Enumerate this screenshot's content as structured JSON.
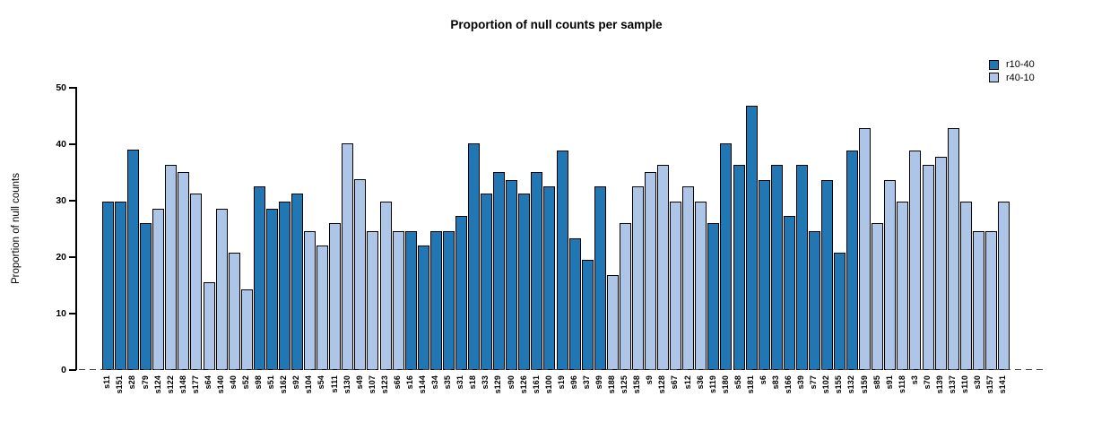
{
  "title": "Proportion of null counts per sample",
  "legend": {
    "items": [
      {
        "label": "r10-40",
        "series": "r10-40"
      },
      {
        "label": "r40-10",
        "series": "r40-10"
      }
    ]
  },
  "colors": {
    "r10-40": "#2176b4",
    "r40-10": "#adc6e8",
    "bar_border": "#000000",
    "zero_line": "#3f3f3f"
  },
  "chart_data": {
    "type": "bar",
    "title": "Proportion of null counts per sample",
    "xlabel": "",
    "ylabel": "Proportion of null counts",
    "ylim": [
      0,
      50
    ],
    "yticks": [
      0,
      10,
      20,
      30,
      40,
      50
    ],
    "grid": false,
    "legend_position": "top-right",
    "zero_line_style": "dashed",
    "series": [
      {
        "name": "r10-40",
        "color": "#2176b4"
      },
      {
        "name": "r40-10",
        "color": "#adc6e8"
      }
    ],
    "bars": [
      {
        "label": "s11",
        "value": 29.8,
        "series": "r10-40"
      },
      {
        "label": "s151",
        "value": 29.8,
        "series": "r10-40"
      },
      {
        "label": "s28",
        "value": 39.0,
        "series": "r10-40"
      },
      {
        "label": "s79",
        "value": 26.0,
        "series": "r10-40"
      },
      {
        "label": "s124",
        "value": 28.5,
        "series": "r40-10"
      },
      {
        "label": "s122",
        "value": 36.4,
        "series": "r40-10"
      },
      {
        "label": "s148",
        "value": 35.0,
        "series": "r40-10"
      },
      {
        "label": "s177",
        "value": 31.2,
        "series": "r40-10"
      },
      {
        "label": "s64",
        "value": 15.6,
        "series": "r40-10"
      },
      {
        "label": "s140",
        "value": 28.5,
        "series": "r40-10"
      },
      {
        "label": "s40",
        "value": 20.8,
        "series": "r40-10"
      },
      {
        "label": "s52",
        "value": 14.3,
        "series": "r40-10"
      },
      {
        "label": "s98",
        "value": 32.5,
        "series": "r10-40"
      },
      {
        "label": "s51",
        "value": 28.5,
        "series": "r10-40"
      },
      {
        "label": "s162",
        "value": 29.9,
        "series": "r10-40"
      },
      {
        "label": "s92",
        "value": 31.2,
        "series": "r10-40"
      },
      {
        "label": "s104",
        "value": 24.6,
        "series": "r40-10"
      },
      {
        "label": "s54",
        "value": 22.1,
        "series": "r40-10"
      },
      {
        "label": "s111",
        "value": 26.0,
        "series": "r40-10"
      },
      {
        "label": "s130",
        "value": 40.2,
        "series": "r40-10"
      },
      {
        "label": "s49",
        "value": 33.8,
        "series": "r40-10"
      },
      {
        "label": "s107",
        "value": 24.6,
        "series": "r40-10"
      },
      {
        "label": "s123",
        "value": 29.8,
        "series": "r40-10"
      },
      {
        "label": "s66",
        "value": 24.6,
        "series": "r40-10"
      },
      {
        "label": "s16",
        "value": 24.6,
        "series": "r10-40"
      },
      {
        "label": "s144",
        "value": 22.1,
        "series": "r10-40"
      },
      {
        "label": "s34",
        "value": 24.6,
        "series": "r10-40"
      },
      {
        "label": "s35",
        "value": 24.6,
        "series": "r10-40"
      },
      {
        "label": "s31",
        "value": 27.3,
        "series": "r10-40"
      },
      {
        "label": "s18",
        "value": 40.2,
        "series": "r10-40"
      },
      {
        "label": "s33",
        "value": 31.2,
        "series": "r10-40"
      },
      {
        "label": "s129",
        "value": 35.0,
        "series": "r10-40"
      },
      {
        "label": "s90",
        "value": 33.7,
        "series": "r10-40"
      },
      {
        "label": "s126",
        "value": 31.2,
        "series": "r10-40"
      },
      {
        "label": "s161",
        "value": 35.0,
        "series": "r10-40"
      },
      {
        "label": "s100",
        "value": 32.5,
        "series": "r10-40"
      },
      {
        "label": "s19",
        "value": 38.9,
        "series": "r10-40"
      },
      {
        "label": "s96",
        "value": 23.3,
        "series": "r10-40"
      },
      {
        "label": "s37",
        "value": 19.6,
        "series": "r10-40"
      },
      {
        "label": "s99",
        "value": 32.5,
        "series": "r10-40"
      },
      {
        "label": "s188",
        "value": 16.9,
        "series": "r40-10"
      },
      {
        "label": "s125",
        "value": 26.0,
        "series": "r40-10"
      },
      {
        "label": "s158",
        "value": 32.5,
        "series": "r40-10"
      },
      {
        "label": "s9",
        "value": 35.0,
        "series": "r40-10"
      },
      {
        "label": "s128",
        "value": 36.4,
        "series": "r40-10"
      },
      {
        "label": "s67",
        "value": 29.8,
        "series": "r40-10"
      },
      {
        "label": "s12",
        "value": 32.5,
        "series": "r40-10"
      },
      {
        "label": "s36",
        "value": 29.8,
        "series": "r40-10"
      },
      {
        "label": "s119",
        "value": 26.0,
        "series": "r10-40"
      },
      {
        "label": "s180",
        "value": 40.2,
        "series": "r10-40"
      },
      {
        "label": "s58",
        "value": 36.4,
        "series": "r10-40"
      },
      {
        "label": "s181",
        "value": 46.8,
        "series": "r10-40"
      },
      {
        "label": "s6",
        "value": 33.7,
        "series": "r10-40"
      },
      {
        "label": "s83",
        "value": 36.4,
        "series": "r10-40"
      },
      {
        "label": "s166",
        "value": 27.3,
        "series": "r10-40"
      },
      {
        "label": "s39",
        "value": 36.4,
        "series": "r10-40"
      },
      {
        "label": "s77",
        "value": 24.6,
        "series": "r10-40"
      },
      {
        "label": "s102",
        "value": 33.7,
        "series": "r10-40"
      },
      {
        "label": "s155",
        "value": 20.8,
        "series": "r10-40"
      },
      {
        "label": "s132",
        "value": 38.9,
        "series": "r10-40"
      },
      {
        "label": "s159",
        "value": 42.8,
        "series": "r40-10"
      },
      {
        "label": "s85",
        "value": 26.0,
        "series": "r40-10"
      },
      {
        "label": "s91",
        "value": 33.7,
        "series": "r40-10"
      },
      {
        "label": "s118",
        "value": 29.8,
        "series": "r40-10"
      },
      {
        "label": "s3",
        "value": 38.9,
        "series": "r40-10"
      },
      {
        "label": "s70",
        "value": 36.4,
        "series": "r40-10"
      },
      {
        "label": "s139",
        "value": 37.7,
        "series": "r40-10"
      },
      {
        "label": "s137",
        "value": 42.8,
        "series": "r40-10"
      },
      {
        "label": "s110",
        "value": 29.8,
        "series": "r40-10"
      },
      {
        "label": "s30",
        "value": 24.6,
        "series": "r40-10"
      },
      {
        "label": "s157",
        "value": 24.6,
        "series": "r40-10"
      },
      {
        "label": "s141",
        "value": 29.8,
        "series": "r40-10"
      }
    ]
  }
}
